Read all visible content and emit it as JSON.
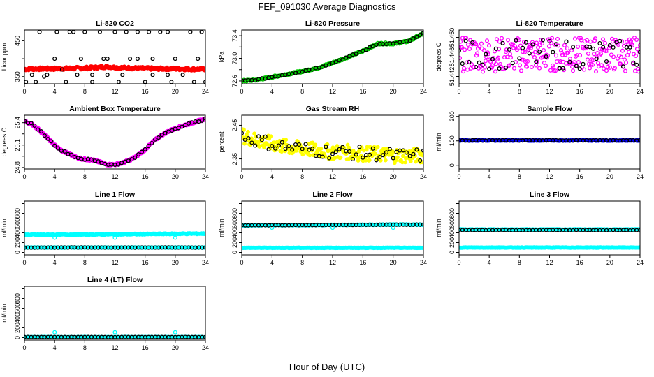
{
  "page": {
    "title": "FEF_091030  Average Diagnostics",
    "x_caption": "Hour of Day (UTC)"
  },
  "colors": {
    "red": "#ff0000",
    "green": "#00cc00",
    "magenta": "#ff00ff",
    "yellow": "#ffff00",
    "blue": "#0000ff",
    "cyan": "#00ffff",
    "black": "#000000"
  },
  "chart_data": [
    {
      "type": "scatter",
      "title": "Li-820 CO2",
      "ylabel": "Licor ppm",
      "xlim": [
        0,
        24
      ],
      "ylim": [
        330,
        480
      ],
      "xticks": [
        0,
        4,
        8,
        12,
        16,
        20,
        24
      ],
      "yticks": [
        350,
        400,
        450
      ],
      "ytick_labels": [
        "350",
        "",
        "450"
      ],
      "series": [
        {
          "color": "red",
          "marker": "filled",
          "x": [
            0,
            2,
            4,
            6,
            8,
            10,
            11,
            12,
            14,
            16,
            18,
            20,
            22,
            24
          ],
          "y": [
            371,
            372,
            372,
            373,
            374,
            376,
            378,
            376,
            374,
            373,
            372,
            372,
            371,
            371
          ],
          "jitter": 4,
          "dense": true
        },
        {
          "color": "black",
          "marker": "open",
          "x": [
            0.2,
            2,
            2.6,
            4,
            4.3,
            5.5,
            6,
            7.5,
            8,
            9,
            10,
            11,
            12,
            12.5,
            14,
            15,
            16,
            17,
            18,
            19.5,
            20,
            22,
            23.5,
            24,
            1,
            3,
            5,
            7,
            9,
            11,
            13,
            15,
            17,
            19,
            21,
            23,
            1.5,
            6.5,
            10.5,
            13.5,
            16.5,
            19,
            22.5
          ],
          "y": [
            335,
            475,
            350,
            400,
            475,
            335,
            475,
            400,
            475,
            335,
            475,
            400,
            475,
            335,
            400,
            475,
            335,
            400,
            475,
            335,
            400,
            475,
            475,
            335,
            355,
            355,
            370,
            355,
            355,
            355,
            355,
            400,
            355,
            355,
            355,
            400,
            335,
            475,
            400,
            475,
            475,
            475,
            335
          ]
        }
      ]
    },
    {
      "type": "scatter",
      "title": "Li-820 Pressure",
      "ylabel": "kPa",
      "xlim": [
        0,
        24
      ],
      "ylim": [
        72.55,
        73.5
      ],
      "xticks": [
        0,
        4,
        8,
        12,
        16,
        20,
        24
      ],
      "yticks": [
        72.6,
        72.8,
        73.0,
        73.2,
        73.4
      ],
      "ytick_labels": [
        "72.6",
        "",
        "73.0",
        "",
        "73.4"
      ],
      "series": [
        {
          "color": "green",
          "marker": "open",
          "x": [
            0,
            2,
            4,
            6,
            8,
            10,
            12,
            14,
            16,
            17,
            18,
            20,
            22,
            24
          ],
          "y": [
            72.6,
            72.62,
            72.67,
            72.72,
            72.77,
            72.83,
            72.92,
            73.02,
            73.13,
            73.19,
            73.26,
            73.26,
            73.3,
            73.44
          ],
          "jitter": 0.015,
          "dense": true
        },
        {
          "color": "black",
          "marker": "open",
          "x": [
            0,
            2,
            4,
            6,
            8,
            10,
            12,
            14,
            16,
            18,
            20,
            22,
            24
          ],
          "y": [
            72.6,
            72.62,
            72.67,
            72.72,
            72.77,
            72.83,
            72.92,
            73.02,
            73.13,
            73.26,
            73.26,
            73.3,
            73.44
          ],
          "jitter": 0.01,
          "count": 55
        }
      ]
    },
    {
      "type": "scatter",
      "title": "Li-820 Temperature",
      "ylabel": "degrees C",
      "xlim": [
        0,
        24
      ],
      "ylim": [
        51.4405,
        51.4515
      ],
      "xticks": [
        0,
        4,
        8,
        12,
        16,
        20,
        24
      ],
      "yticks": [
        51.442,
        51.446,
        51.45
      ],
      "ytick_labels": [
        "51.442",
        "51.446",
        "51.450"
      ],
      "series": [
        {
          "color": "magenta",
          "marker": "open",
          "x": [
            0,
            4,
            8,
            12,
            16,
            20,
            24
          ],
          "y": [
            51.4465,
            51.4465,
            51.4465,
            51.4465,
            51.4465,
            51.4465,
            51.4465
          ],
          "jitter": 0.0035,
          "dense": true
        },
        {
          "color": "black",
          "marker": "open",
          "x": [
            0,
            4,
            8,
            12,
            16,
            20,
            24
          ],
          "y": [
            51.4465,
            51.4465,
            51.4465,
            51.4465,
            51.4465,
            51.4465,
            51.4465
          ],
          "jitter": 0.003,
          "count": 55
        }
      ]
    },
    {
      "type": "scatter",
      "title": "Ambient Box Temperature",
      "ylabel": "degrees C",
      "xlim": [
        0,
        24
      ],
      "ylim": [
        24.78,
        25.5
      ],
      "xticks": [
        0,
        4,
        8,
        12,
        16,
        20,
        24
      ],
      "yticks": [
        24.8,
        24.95,
        25.1,
        25.25,
        25.4
      ],
      "ytick_labels": [
        "24.8",
        "",
        "25.1",
        "",
        "25.4"
      ],
      "series": [
        {
          "color": "magenta",
          "marker": "filled",
          "x": [
            0,
            1,
            2,
            3,
            4,
            5,
            6,
            7,
            8,
            9,
            10,
            11,
            12,
            13,
            14,
            15,
            16,
            17,
            18,
            19,
            20,
            21,
            22,
            23,
            24
          ],
          "y": [
            25.42,
            25.38,
            25.3,
            25.2,
            25.1,
            25.02,
            24.98,
            24.93,
            24.91,
            24.9,
            24.87,
            24.84,
            24.84,
            24.86,
            24.9,
            24.96,
            25.04,
            25.14,
            25.22,
            25.28,
            25.32,
            25.36,
            25.39,
            25.42,
            25.45
          ],
          "jitter": 0.015,
          "dense": true
        },
        {
          "color": "black",
          "marker": "open",
          "x": [
            0,
            1,
            2,
            3,
            4,
            5,
            6,
            7,
            8,
            9,
            10,
            11,
            12,
            13,
            14,
            15,
            16,
            17,
            18,
            19,
            20,
            21,
            22,
            23,
            24
          ],
          "y": [
            25.42,
            25.38,
            25.3,
            25.2,
            25.1,
            25.02,
            24.98,
            24.93,
            24.91,
            24.9,
            24.87,
            24.84,
            24.84,
            24.86,
            24.9,
            24.96,
            25.04,
            25.14,
            25.22,
            25.28,
            25.32,
            25.36,
            25.39,
            25.42,
            25.45
          ],
          "jitter": 0.01,
          "count": 55
        }
      ]
    },
    {
      "type": "scatter",
      "title": "Gas Stream RH",
      "ylabel": "percent",
      "xlim": [
        0,
        24
      ],
      "ylim": [
        2.32,
        2.48
      ],
      "xticks": [
        0,
        4,
        8,
        12,
        16,
        20,
        24
      ],
      "yticks": [
        2.35,
        2.4,
        2.45
      ],
      "ytick_labels": [
        "2.35",
        "",
        "2.45"
      ],
      "series": [
        {
          "color": "yellow",
          "marker": "filled",
          "x": [
            0,
            2,
            4,
            6,
            8,
            10,
            12,
            14,
            16,
            18,
            20,
            22,
            24
          ],
          "y": [
            2.42,
            2.405,
            2.395,
            2.385,
            2.38,
            2.375,
            2.37,
            2.37,
            2.365,
            2.365,
            2.36,
            2.36,
            2.36
          ],
          "jitter": 0.022,
          "dense": true
        },
        {
          "color": "black",
          "marker": "open",
          "x": [
            0,
            2,
            4,
            6,
            8,
            10,
            12,
            14,
            16,
            18,
            20,
            22,
            24
          ],
          "y": [
            2.42,
            2.405,
            2.395,
            2.385,
            2.38,
            2.375,
            2.37,
            2.37,
            2.365,
            2.365,
            2.36,
            2.36,
            2.36
          ],
          "jitter": 0.02,
          "count": 55
        }
      ]
    },
    {
      "type": "scatter",
      "title": "Sample Flow",
      "ylabel": "ml/min",
      "xlim": [
        0,
        24
      ],
      "ylim": [
        -15,
        205
      ],
      "xticks": [
        0,
        4,
        8,
        12,
        16,
        20,
        24
      ],
      "yticks": [
        0,
        100,
        200
      ],
      "ytick_labels": [
        "0",
        "100",
        "200"
      ],
      "series": [
        {
          "color": "blue",
          "marker": "filled",
          "x": [
            0,
            24
          ],
          "y": [
            102,
            102
          ],
          "jitter": 2,
          "dense": true
        },
        {
          "color": "black",
          "marker": "open",
          "x": [
            0,
            24
          ],
          "y": [
            102,
            102
          ],
          "jitter": 1,
          "count": 55
        }
      ]
    },
    {
      "type": "scatter",
      "title": "Line 1 Flow",
      "ylabel": "ml/min",
      "xlim": [
        0,
        24
      ],
      "ylim": [
        -50,
        1050
      ],
      "xticks": [
        0,
        4,
        8,
        12,
        16,
        20,
        24
      ],
      "yticks": [
        0,
        200,
        400,
        600,
        800,
        1000
      ],
      "ytick_labels": [
        "0",
        "200",
        "400",
        "600",
        "800",
        ""
      ],
      "series": [
        {
          "color": "cyan",
          "marker": "filled",
          "x": [
            0,
            12,
            24
          ],
          "y": [
            360,
            370,
            385
          ],
          "jitter": 10,
          "dense": true
        },
        {
          "color": "cyan",
          "marker": "filled",
          "x": [
            0,
            24
          ],
          "y": [
            100,
            100
          ],
          "jitter": 5,
          "dense": true
        },
        {
          "color": "cyan",
          "marker": "open",
          "x": [
            4,
            12,
            20
          ],
          "y": [
            300,
            300,
            300
          ]
        },
        {
          "color": "black",
          "marker": "open",
          "x": [
            0,
            24
          ],
          "y": [
            100,
            100
          ],
          "jitter": 3,
          "count": 55
        }
      ]
    },
    {
      "type": "scatter",
      "title": "Line 2 Flow",
      "ylabel": "ml/min",
      "xlim": [
        0,
        24
      ],
      "ylim": [
        -50,
        1050
      ],
      "xticks": [
        0,
        4,
        8,
        12,
        16,
        20,
        24
      ],
      "yticks": [
        0,
        200,
        400,
        600,
        800,
        1000
      ],
      "ytick_labels": [
        "0",
        "200",
        "400",
        "600",
        "800",
        ""
      ],
      "series": [
        {
          "color": "cyan",
          "marker": "filled",
          "x": [
            0,
            24
          ],
          "y": [
            555,
            570
          ],
          "jitter": 8,
          "dense": true
        },
        {
          "color": "cyan",
          "marker": "filled",
          "x": [
            0,
            24
          ],
          "y": [
            95,
            95
          ],
          "jitter": 5,
          "dense": true
        },
        {
          "color": "cyan",
          "marker": "open",
          "x": [
            4,
            12,
            20
          ],
          "y": [
            505,
            505,
            505
          ]
        },
        {
          "color": "black",
          "marker": "open",
          "x": [
            0,
            24
          ],
          "y": [
            555,
            570
          ],
          "jitter": 3,
          "count": 55
        }
      ]
    },
    {
      "type": "scatter",
      "title": "Line 3 Flow",
      "ylabel": "ml/min",
      "xlim": [
        0,
        24
      ],
      "ylim": [
        -50,
        1050
      ],
      "xticks": [
        0,
        4,
        8,
        12,
        16,
        20,
        24
      ],
      "yticks": [
        0,
        200,
        400,
        600,
        800,
        1000
      ],
      "ytick_labels": [
        "0",
        "200",
        "400",
        "600",
        "800",
        ""
      ],
      "series": [
        {
          "color": "cyan",
          "marker": "filled",
          "x": [
            0,
            24
          ],
          "y": [
            470,
            470
          ],
          "jitter": 8,
          "dense": true
        },
        {
          "color": "cyan",
          "marker": "filled",
          "x": [
            0,
            24
          ],
          "y": [
            100,
            100
          ],
          "jitter": 5,
          "dense": true
        },
        {
          "color": "black",
          "marker": "open",
          "x": [
            0,
            24
          ],
          "y": [
            455,
            455
          ],
          "jitter": 3,
          "count": 55
        }
      ]
    },
    {
      "type": "scatter",
      "title": "Line 4 (LT) Flow",
      "ylabel": "ml/min",
      "xlim": [
        0,
        24
      ],
      "ylim": [
        -50,
        1050
      ],
      "xticks": [
        0,
        4,
        8,
        12,
        16,
        20,
        24
      ],
      "yticks": [
        0,
        200,
        400,
        600,
        800,
        1000
      ],
      "ytick_labels": [
        "0",
        "200",
        "400",
        "600",
        "800",
        ""
      ],
      "series": [
        {
          "color": "cyan",
          "marker": "filled",
          "x": [
            0,
            24
          ],
          "y": [
            12,
            12
          ],
          "jitter": 4,
          "dense": true
        },
        {
          "color": "cyan",
          "marker": "open",
          "x": [
            4,
            12,
            20
          ],
          "y": [
            110,
            110,
            110
          ]
        },
        {
          "color": "black",
          "marker": "open",
          "x": [
            0,
            24
          ],
          "y": [
            12,
            12
          ],
          "jitter": 2,
          "count": 55
        }
      ]
    }
  ]
}
